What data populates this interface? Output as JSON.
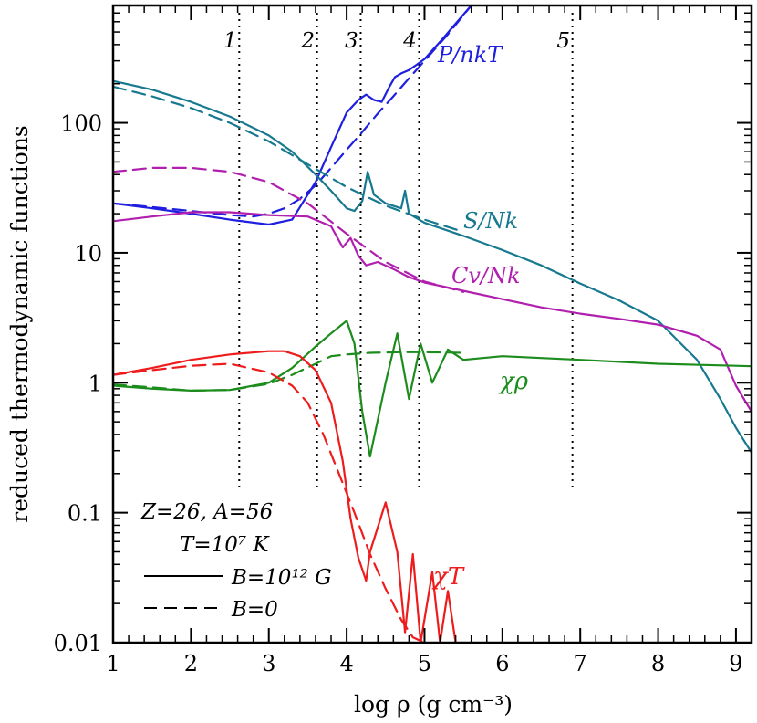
{
  "chart_data": {
    "type": "line",
    "xlabel": "log ρ (g cm⁻³)",
    "ylabel": "reduced thermodynamic functions",
    "xlim": [
      1,
      9.2
    ],
    "ylim": [
      0.01,
      800
    ],
    "y_scale": "log",
    "x_ticks": [
      1,
      2,
      3,
      4,
      5,
      6,
      7,
      8,
      9
    ],
    "x_tick_labels": [
      "1",
      "2",
      "3",
      "4",
      "5",
      "6",
      "7",
      "8",
      "9"
    ],
    "y_ticks": [
      0.01,
      0.1,
      1,
      10,
      100
    ],
    "y_tick_labels": [
      "0.01",
      "0.1",
      "1",
      "10",
      "100"
    ],
    "vlines": [
      {
        "x": 2.62,
        "label": "1"
      },
      {
        "x": 3.62,
        "label": "2"
      },
      {
        "x": 4.18,
        "label": "3"
      },
      {
        "x": 4.93,
        "label": "4"
      },
      {
        "x": 6.9,
        "label": "5"
      }
    ],
    "annotations": {
      "params_line1": "Z=26, A=56",
      "params_line2": "T=10⁷ K",
      "legend_solid": "B=10¹² G",
      "legend_dashed": "B=0"
    },
    "legend": {
      "position": "bottom-left",
      "entries": [
        "solid: B=10¹² G",
        "dashed: B=0"
      ]
    },
    "colors": {
      "P": "#1f1fe0",
      "S": "#17798f",
      "Cv": "#b01fae",
      "chi_rho": "#1c8c1c",
      "chi_T": "#ee1c1c"
    },
    "series": [
      {
        "name": "P/nkT",
        "style": "solid",
        "color": "#1f1fe0",
        "x": [
          1.0,
          1.5,
          2.0,
          2.5,
          3.0,
          3.3,
          3.6,
          3.8,
          4.0,
          4.15,
          4.25,
          4.35,
          4.45,
          4.55,
          4.62,
          4.7,
          4.8,
          4.9,
          5.0,
          5.2,
          5.4,
          5.6
        ],
        "y": [
          24,
          22,
          20,
          18,
          16.5,
          18,
          35,
          65,
          120,
          150,
          165,
          150,
          145,
          190,
          225,
          240,
          255,
          280,
          310,
          420,
          580,
          800
        ]
      },
      {
        "name": "P/nkT",
        "style": "dashed",
        "color": "#1f1fe0",
        "x": [
          1.0,
          1.5,
          2.0,
          2.5,
          2.8,
          3.0,
          3.2,
          3.4,
          3.6,
          3.8,
          4.0,
          4.2,
          4.4,
          4.6,
          4.8,
          5.0,
          5.3,
          5.6
        ],
        "y": [
          24,
          22.5,
          21,
          19.5,
          19,
          20,
          22,
          26,
          33,
          45,
          62,
          85,
          118,
          160,
          220,
          300,
          480,
          800
        ]
      },
      {
        "name": "S/Nk",
        "style": "solid",
        "color": "#17798f",
        "x": [
          1.0,
          1.5,
          2.0,
          2.5,
          3.0,
          3.3,
          3.6,
          3.8,
          4.0,
          4.1,
          4.2,
          4.27,
          4.35,
          4.5,
          4.7,
          4.75,
          4.8,
          5.0,
          5.5,
          6.0,
          6.5,
          7.0,
          7.5,
          8.0,
          8.5,
          8.8,
          9.0,
          9.2
        ],
        "y": [
          210,
          180,
          145,
          112,
          80,
          60,
          40,
          30,
          22,
          21,
          25,
          42,
          28,
          24,
          22,
          30,
          20,
          17,
          13.5,
          10.5,
          8,
          5.8,
          4.3,
          3.0,
          1.5,
          0.75,
          0.45,
          0.29
        ]
      },
      {
        "name": "S/Nk",
        "style": "dashed",
        "color": "#17798f",
        "x": [
          1.0,
          1.5,
          2.0,
          2.5,
          3.0,
          3.5,
          4.0,
          4.5,
          5.0,
          5.5
        ],
        "y": [
          190,
          160,
          130,
          100,
          72,
          48,
          32,
          23,
          18,
          14.5
        ]
      },
      {
        "name": "Cv/Nk",
        "style": "solid",
        "color": "#b01fae",
        "x": [
          1.0,
          1.5,
          2.0,
          2.5,
          3.0,
          3.5,
          3.8,
          3.95,
          4.05,
          4.15,
          4.25,
          4.4,
          4.6,
          4.8,
          5.0,
          5.5,
          6.0,
          6.5,
          7.0,
          7.5,
          8.0,
          8.5,
          8.8,
          9.0,
          9.2
        ],
        "y": [
          17.5,
          19,
          20.5,
          20.5,
          19.5,
          19,
          16,
          11,
          13,
          9.5,
          8,
          8.5,
          7.5,
          6.5,
          5.9,
          5.1,
          4.4,
          3.8,
          3.4,
          3.1,
          2.8,
          2.3,
          1.8,
          0.95,
          0.6
        ]
      },
      {
        "name": "Cv/Nk",
        "style": "dashed",
        "color": "#b01fae",
        "x": [
          1.0,
          1.5,
          2.0,
          2.5,
          3.0,
          3.5,
          4.0,
          4.5,
          5.0,
          5.5
        ],
        "y": [
          42,
          45,
          45,
          42,
          35,
          24,
          14,
          8.5,
          6.0,
          5.0
        ]
      },
      {
        "name": "χρ",
        "style": "solid",
        "color": "#1c8c1c",
        "x": [
          1.0,
          1.5,
          2.0,
          2.5,
          3.0,
          3.3,
          3.6,
          3.8,
          4.0,
          4.1,
          4.2,
          4.3,
          4.5,
          4.65,
          4.8,
          4.95,
          5.1,
          5.3,
          5.5,
          6.0,
          7.0,
          8.0,
          9.0,
          9.2
        ],
        "y": [
          0.95,
          0.9,
          0.87,
          0.88,
          1.0,
          1.3,
          1.9,
          2.4,
          3.0,
          2.0,
          0.6,
          0.27,
          1.0,
          2.4,
          0.75,
          2.0,
          1.0,
          1.8,
          1.5,
          1.6,
          1.5,
          1.4,
          1.35,
          1.34
        ]
      },
      {
        "name": "χρ",
        "style": "dashed",
        "color": "#1c8c1c",
        "x": [
          1.0,
          1.5,
          2.0,
          2.5,
          3.0,
          3.3,
          3.6,
          3.8,
          4.0,
          4.3,
          4.7,
          5.0,
          5.5
        ],
        "y": [
          0.97,
          0.92,
          0.87,
          0.88,
          0.98,
          1.15,
          1.4,
          1.6,
          1.65,
          1.7,
          1.72,
          1.72,
          1.7
        ]
      },
      {
        "name": "χT",
        "style": "solid",
        "color": "#ee1c1c",
        "x": [
          1.0,
          1.5,
          2.0,
          2.5,
          3.0,
          3.2,
          3.4,
          3.6,
          3.8,
          3.95,
          4.05,
          4.15,
          4.25,
          4.3,
          4.5,
          4.65,
          4.75,
          4.85,
          4.95,
          5.1,
          5.2,
          5.3,
          5.4
        ],
        "y": [
          1.15,
          1.3,
          1.5,
          1.65,
          1.75,
          1.75,
          1.6,
          1.25,
          0.7,
          0.25,
          0.09,
          0.045,
          0.03,
          0.05,
          0.12,
          0.05,
          0.012,
          0.048,
          0.01,
          0.035,
          0.01,
          0.025,
          0.01
        ]
      },
      {
        "name": "χT",
        "style": "dashed",
        "color": "#ee1c1c",
        "x": [
          1.0,
          1.5,
          2.0,
          2.5,
          3.0,
          3.3,
          3.5,
          3.7,
          3.9,
          4.1,
          4.3,
          4.5,
          4.7,
          4.85,
          5.0
        ],
        "y": [
          1.15,
          1.25,
          1.35,
          1.4,
          1.2,
          0.95,
          0.7,
          0.4,
          0.2,
          0.1,
          0.048,
          0.026,
          0.015,
          0.011,
          0.01
        ]
      }
    ],
    "series_labels": [
      {
        "text": "P/nkT",
        "color": "#1f1fe0"
      },
      {
        "text": "S/Nk",
        "color": "#17798f"
      },
      {
        "text": "Cv/Nk",
        "color": "#b01fae"
      },
      {
        "text": "χρ",
        "color": "#1c8c1c"
      },
      {
        "text": "χT",
        "color": "#ee1c1c"
      }
    ]
  }
}
